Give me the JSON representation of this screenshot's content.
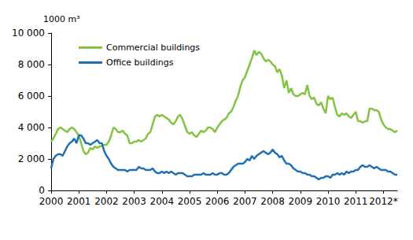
{
  "chart_data": {
    "type": "line",
    "y_label": "1000 m³",
    "categories": [
      "2000",
      null,
      null,
      null,
      null,
      null,
      null,
      null,
      null,
      null,
      null,
      null,
      "2001",
      null,
      null,
      null,
      null,
      null,
      null,
      null,
      null,
      null,
      null,
      null,
      "2002",
      null,
      null,
      null,
      null,
      null,
      null,
      null,
      null,
      null,
      null,
      null,
      "2003",
      null,
      null,
      null,
      null,
      null,
      null,
      null,
      null,
      null,
      null,
      null,
      "2004",
      null,
      null,
      null,
      null,
      null,
      null,
      null,
      null,
      null,
      null,
      null,
      "2005",
      null,
      null,
      null,
      null,
      null,
      null,
      null,
      null,
      null,
      null,
      null,
      "2006",
      null,
      null,
      null,
      null,
      null,
      null,
      null,
      null,
      null,
      null,
      null,
      "2007",
      null,
      null,
      null,
      null,
      null,
      null,
      null,
      null,
      null,
      null,
      null,
      "2008",
      null,
      null,
      null,
      null,
      null,
      null,
      null,
      null,
      null,
      null,
      null,
      "2009",
      null,
      null,
      null,
      null,
      null,
      null,
      null,
      null,
      null,
      null,
      null,
      "2010",
      null,
      null,
      null,
      null,
      null,
      null,
      null,
      null,
      null,
      null,
      null,
      "2011",
      null,
      null,
      null,
      null,
      null,
      null,
      null,
      null,
      null,
      null,
      null,
      "2012*",
      null,
      null,
      null,
      null,
      null,
      null
    ],
    "series": [
      {
        "name": "Commercial buildings",
        "color": "#82c341",
        "values": [
          3100,
          3300,
          3600,
          3900,
          4000,
          3900,
          3800,
          3700,
          3900,
          4000,
          3900,
          3700,
          3500,
          3000,
          2500,
          2300,
          2400,
          2700,
          2600,
          2800,
          2700,
          2800,
          2800,
          2900,
          2900,
          3100,
          3500,
          4000,
          3900,
          3700,
          3700,
          3800,
          3600,
          3500,
          3000,
          3000,
          3100,
          3100,
          3200,
          3100,
          3200,
          3300,
          3600,
          3700,
          4200,
          4700,
          4800,
          4700,
          4800,
          4700,
          4600,
          4500,
          4300,
          4200,
          4400,
          4700,
          4800,
          4500,
          4100,
          3700,
          3600,
          3700,
          3500,
          3400,
          3600,
          3800,
          3700,
          3800,
          4000,
          4000,
          3900,
          3700,
          4000,
          4200,
          4400,
          4500,
          4600,
          4900,
          5000,
          5300,
          5700,
          6000,
          6600,
          7000,
          7200,
          7600,
          8000,
          8400,
          8900,
          8600,
          8800,
          8700,
          8400,
          8200,
          8300,
          8200,
          8000,
          7900,
          7500,
          7700,
          7300,
          6500,
          7000,
          6200,
          6500,
          6100,
          6000,
          6000,
          6100,
          6200,
          6100,
          6700,
          6000,
          5800,
          5900,
          5500,
          5400,
          5600,
          5200,
          4900,
          6000,
          5800,
          5900,
          5300,
          4800,
          4700,
          4900,
          4800,
          4900,
          4700,
          4600,
          4800,
          5000,
          4400,
          4400,
          4300,
          4400,
          4400,
          5200,
          5200,
          5100,
          5100,
          5000,
          4500,
          4200,
          4000,
          3900,
          3900,
          3800,
          3700,
          3800
        ]
      },
      {
        "name": "Office buildings",
        "color": "#1f6fb5",
        "values": [
          1400,
          2000,
          2200,
          2300,
          2300,
          2200,
          2500,
          2800,
          3000,
          3100,
          3300,
          3000,
          3500,
          3500,
          3300,
          3000,
          3000,
          2900,
          3000,
          3100,
          3200,
          3000,
          3000,
          2500,
          2200,
          2000,
          1700,
          1500,
          1400,
          1300,
          1300,
          1300,
          1300,
          1200,
          1300,
          1300,
          1300,
          1300,
          1500,
          1400,
          1400,
          1300,
          1300,
          1300,
          1400,
          1200,
          1100,
          1100,
          1200,
          1100,
          1200,
          1100,
          1200,
          1100,
          1000,
          1100,
          1100,
          1100,
          1000,
          900,
          900,
          900,
          1000,
          1000,
          1000,
          1000,
          1100,
          1000,
          1000,
          1000,
          1100,
          1000,
          1000,
          1100,
          1100,
          1000,
          1000,
          1100,
          1300,
          1500,
          1600,
          1700,
          1700,
          1700,
          1800,
          2000,
          1900,
          2200,
          2000,
          2200,
          2300,
          2400,
          2500,
          2400,
          2300,
          2400,
          2600,
          2400,
          2300,
          2100,
          2200,
          1900,
          1700,
          1700,
          1600,
          1400,
          1300,
          1200,
          1200,
          1100,
          1100,
          1000,
          1000,
          900,
          900,
          800,
          700,
          800,
          800,
          900,
          900,
          800,
          1000,
          1000,
          1100,
          1000,
          1100,
          1000,
          1200,
          1100,
          1200,
          1200,
          1300,
          1300,
          1500,
          1600,
          1500,
          1500,
          1600,
          1500,
          1400,
          1500,
          1400,
          1300,
          1300,
          1300,
          1200,
          1200,
          1100,
          1000,
          1000
        ]
      }
    ],
    "ylim": [
      0,
      10000
    ],
    "yticks": [
      0,
      {
        "value": 2000,
        "label": "2 000"
      },
      {
        "value": 4000,
        "label": "4 000"
      },
      {
        "value": 6000,
        "label": "6 000"
      },
      {
        "value": 8000,
        "label": "8 000"
      },
      {
        "value": 10000,
        "label": "10 000"
      }
    ],
    "grid": false,
    "legend": "upper left"
  }
}
